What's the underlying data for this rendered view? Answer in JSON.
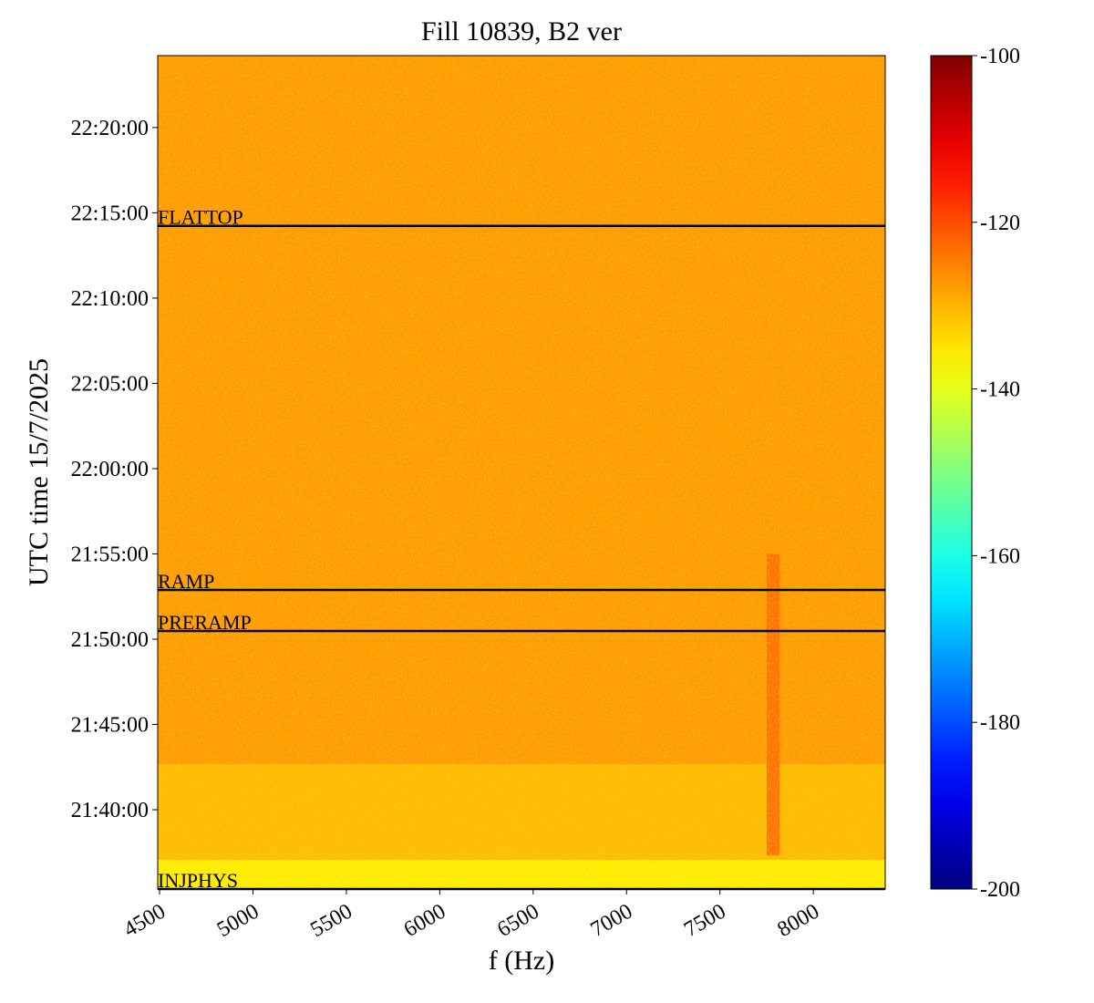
{
  "chart_data": {
    "type": "heatmap",
    "title": "Fill 10839, B2 ver",
    "xlabel": "f (Hz)",
    "ylabel": "UTC time 15/7/2025",
    "xlim": [
      4490,
      8385
    ],
    "xticks": [
      4500,
      5000,
      5500,
      6000,
      6500,
      7000,
      7500,
      8000
    ],
    "ylim": [
      77721,
      80653
    ],
    "yticks": [
      {
        "value": 78000,
        "label": "21:40:00"
      },
      {
        "value": 78300,
        "label": "21:45:00"
      },
      {
        "value": 78600,
        "label": "21:50:00"
      },
      {
        "value": 78900,
        "label": "21:55:00"
      },
      {
        "value": 79200,
        "label": "22:00:00"
      },
      {
        "value": 79500,
        "label": "22:05:00"
      },
      {
        "value": 79800,
        "label": "22:10:00"
      },
      {
        "value": 80100,
        "label": "22:15:00"
      },
      {
        "value": 80400,
        "label": "22:20:00"
      }
    ],
    "regions": [
      {
        "f": [
          4490,
          8385
        ],
        "t": [
          77721,
          80653
        ],
        "value": -128
      },
      {
        "f": [
          4490,
          8385
        ],
        "t": [
          77824,
          78160
        ],
        "value": -131
      },
      {
        "f": [
          4490,
          8385
        ],
        "t": [
          77721,
          77824
        ],
        "value": -136
      },
      {
        "f": [
          7750,
          7820
        ],
        "t": [
          77840,
          78900
        ],
        "value": -124
      }
    ],
    "markers": [
      {
        "label": "FLATTOP",
        "t": 80054
      },
      {
        "label": "RAMP",
        "t": 78773
      },
      {
        "label": "PRERAMP",
        "t": 78629
      },
      {
        "label": "INJPHYS",
        "t": 77721
      }
    ],
    "colorbar": {
      "colormap": "jet",
      "lim": [
        -200,
        -100
      ],
      "ticks": [
        -200,
        -180,
        -160,
        -140,
        -120,
        -100
      ]
    }
  }
}
